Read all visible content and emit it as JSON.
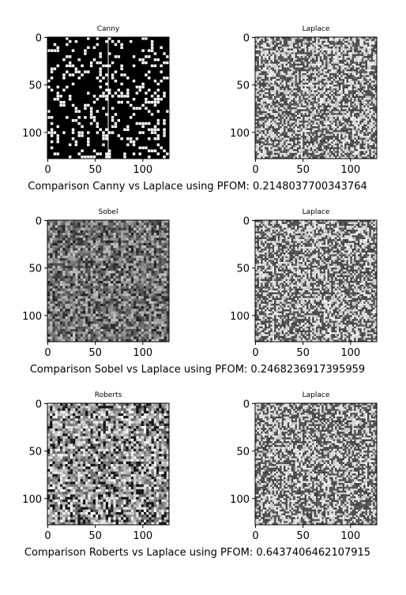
{
  "chart_data": [
    {
      "type": "heatmap",
      "title": "Canny",
      "texture": "edges",
      "xticks": [
        0,
        50,
        100
      ],
      "yticks": [
        0,
        50,
        100
      ],
      "xlim": [
        0,
        128
      ],
      "ylim": [
        128,
        0
      ]
    },
    {
      "type": "heatmap",
      "title": "Laplace",
      "texture": "fine",
      "xticks": [
        0,
        50,
        100
      ],
      "yticks": [
        0,
        50,
        100
      ],
      "xlim": [
        0,
        128
      ],
      "ylim": [
        128,
        0
      ]
    },
    {
      "type": "heatmap",
      "title": "Sobel",
      "texture": "gray",
      "xticks": [
        0,
        50,
        100
      ],
      "yticks": [
        0,
        50,
        100
      ],
      "xlim": [
        0,
        128
      ],
      "ylim": [
        128,
        0
      ]
    },
    {
      "type": "heatmap",
      "title": "Laplace",
      "texture": "fine",
      "xticks": [
        0,
        50,
        100
      ],
      "yticks": [
        0,
        50,
        100
      ],
      "xlim": [
        0,
        128
      ],
      "ylim": [
        128,
        0
      ]
    },
    {
      "type": "heatmap",
      "title": "Roberts",
      "texture": "coarse",
      "xticks": [
        0,
        50,
        100
      ],
      "yticks": [
        0,
        50,
        100
      ],
      "xlim": [
        0,
        128
      ],
      "ylim": [
        128,
        0
      ]
    },
    {
      "type": "heatmap",
      "title": "Laplace",
      "texture": "fine",
      "xticks": [
        0,
        50,
        100
      ],
      "yticks": [
        0,
        50,
        100
      ],
      "xlim": [
        0,
        128
      ],
      "ylim": [
        128,
        0
      ]
    }
  ],
  "captions": [
    "Comparison Canny vs Laplace using PFOM: 0.2148037700343764",
    "Comparison Sobel vs Laplace using PFOM: 0.2468236917395959",
    "Comparison Roberts vs Laplace using PFOM: 0.6437406462107915"
  ]
}
